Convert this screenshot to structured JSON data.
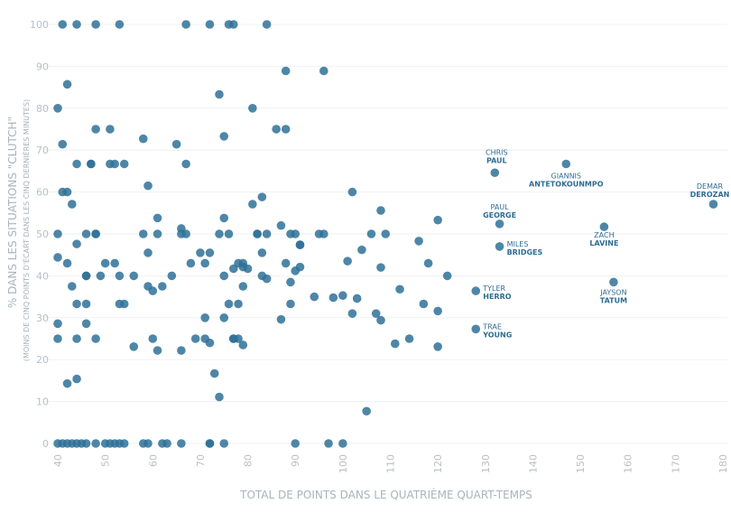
{
  "chart_data": {
    "type": "scatter",
    "xlabel": "TOTAL DE POINTS DANS LE QUATRIÈME QUART-TEMPS",
    "ylabel": "% DANS LES SITUATIONS \"CLUTCH\"",
    "ylabel_sub": "(MOINS DE CINQ POINTS D'ÉCART DANS LES CINQ DERNIÈRES MINUTES)",
    "xlim": [
      40,
      180
    ],
    "ylim": [
      0,
      100
    ],
    "x_ticks": [
      "40",
      "50",
      "60",
      "70",
      "80",
      "90",
      "100",
      "110",
      "120",
      "130",
      "140",
      "150",
      "160",
      "170",
      "180"
    ],
    "y_ticks": [
      "0",
      "10",
      "20",
      "30",
      "40",
      "50",
      "60",
      "70",
      "80",
      "90",
      "100"
    ],
    "grid": true,
    "colors": {
      "point": "#2f7198",
      "label": "#2f6d92",
      "grid": "#eef0f2",
      "tick": "#b8c0c8"
    },
    "labeled_points": [
      {
        "x": 132,
        "y": 64.6,
        "first": "CHRIS",
        "last": "PAUL"
      },
      {
        "x": 147,
        "y": 66.7,
        "first": "GIANNIS",
        "last": "ANTETOKOUNMPO"
      },
      {
        "x": 178,
        "y": 57.1,
        "first": "DEMAR",
        "last": "DEROZAN"
      },
      {
        "x": 133,
        "y": 52.4,
        "first": "PAUL",
        "last": "GEORGE"
      },
      {
        "x": 155,
        "y": 51.7,
        "first": "ZACH",
        "last": "LAVINE"
      },
      {
        "x": 133,
        "y": 47.0,
        "first": "MILES",
        "last": "BRIDGES"
      },
      {
        "x": 157,
        "y": 38.5,
        "first": "JAYSON",
        "last": "TATUM"
      },
      {
        "x": 128,
        "y": 36.4,
        "first": "TYLER",
        "last": "HERRO"
      },
      {
        "x": 128,
        "y": 27.3,
        "first": "TRAE",
        "last": "YOUNG"
      }
    ],
    "points": [
      [
        41,
        100
      ],
      [
        44,
        100
      ],
      [
        48,
        100
      ],
      [
        53,
        100
      ],
      [
        67,
        100
      ],
      [
        72,
        100
      ],
      [
        76,
        100
      ],
      [
        77,
        100
      ],
      [
        84,
        100
      ],
      [
        88,
        88.9
      ],
      [
        96,
        88.9
      ],
      [
        42,
        85.7
      ],
      [
        74,
        83.3
      ],
      [
        40,
        80
      ],
      [
        81,
        80
      ],
      [
        48,
        75
      ],
      [
        51,
        75
      ],
      [
        86,
        75
      ],
      [
        88,
        75
      ],
      [
        75,
        73.3
      ],
      [
        58,
        72.7
      ],
      [
        41,
        71.4
      ],
      [
        65,
        71.4
      ],
      [
        44,
        66.7
      ],
      [
        47,
        66.7
      ],
      [
        47,
        66.7
      ],
      [
        51,
        66.7
      ],
      [
        52,
        66.7
      ],
      [
        54,
        66.7
      ],
      [
        67,
        66.7
      ],
      [
        59,
        61.5
      ],
      [
        41,
        60
      ],
      [
        42,
        60
      ],
      [
        102,
        60
      ],
      [
        83,
        58.8
      ],
      [
        43,
        57.1
      ],
      [
        81,
        57.1
      ],
      [
        108,
        55.6
      ],
      [
        61,
        53.8
      ],
      [
        75,
        53.8
      ],
      [
        120,
        53.3
      ],
      [
        87,
        52
      ],
      [
        66,
        51.3
      ],
      [
        40,
        50
      ],
      [
        46,
        50
      ],
      [
        48,
        50
      ],
      [
        48,
        50
      ],
      [
        58,
        50
      ],
      [
        61,
        50
      ],
      [
        66,
        50
      ],
      [
        67,
        50
      ],
      [
        74,
        50
      ],
      [
        76,
        50
      ],
      [
        82,
        50
      ],
      [
        82,
        50
      ],
      [
        84,
        50
      ],
      [
        89,
        50
      ],
      [
        90,
        50
      ],
      [
        95,
        50
      ],
      [
        96,
        50
      ],
      [
        106,
        50
      ],
      [
        109,
        50
      ],
      [
        116,
        48.3
      ],
      [
        44,
        47.6
      ],
      [
        91,
        47.4
      ],
      [
        91,
        47.4
      ],
      [
        104,
        46.2
      ],
      [
        59,
        45.5
      ],
      [
        70,
        45.5
      ],
      [
        72,
        45.5
      ],
      [
        83,
        45.5
      ],
      [
        40,
        44.4
      ],
      [
        42,
        43
      ],
      [
        50,
        43
      ],
      [
        52,
        43
      ],
      [
        68,
        43
      ],
      [
        71,
        43
      ],
      [
        78,
        43
      ],
      [
        79,
        43
      ],
      [
        88,
        43
      ],
      [
        101,
        43.5
      ],
      [
        118,
        43
      ],
      [
        79,
        42.1
      ],
      [
        77,
        41.7
      ],
      [
        80,
        41.7
      ],
      [
        90,
        41.2
      ],
      [
        91,
        42.1
      ],
      [
        108,
        42
      ],
      [
        46,
        40
      ],
      [
        46,
        40
      ],
      [
        49,
        40
      ],
      [
        53,
        40
      ],
      [
        56,
        40
      ],
      [
        64,
        40
      ],
      [
        75,
        40
      ],
      [
        83,
        40
      ],
      [
        122,
        40
      ],
      [
        84,
        39.3
      ],
      [
        89,
        38.5
      ],
      [
        43,
        37.5
      ],
      [
        59,
        37.5
      ],
      [
        62,
        37.5
      ],
      [
        79,
        37.5
      ],
      [
        112,
        36.8
      ],
      [
        60,
        36.4
      ],
      [
        94,
        35
      ],
      [
        98,
        34.8
      ],
      [
        100,
        35.3
      ],
      [
        103,
        34.6
      ],
      [
        44,
        33.3
      ],
      [
        46,
        33.3
      ],
      [
        53,
        33.3
      ],
      [
        54,
        33.3
      ],
      [
        76,
        33.3
      ],
      [
        78,
        33.3
      ],
      [
        89,
        33.3
      ],
      [
        117,
        33.3
      ],
      [
        102,
        31
      ],
      [
        107,
        31
      ],
      [
        120,
        31.6
      ],
      [
        71,
        30
      ],
      [
        75,
        30
      ],
      [
        87,
        29.6
      ],
      [
        108,
        29.4
      ],
      [
        40,
        28.6
      ],
      [
        46,
        28.6
      ],
      [
        40,
        25
      ],
      [
        44,
        25
      ],
      [
        48,
        25
      ],
      [
        60,
        25
      ],
      [
        69,
        25
      ],
      [
        71,
        25
      ],
      [
        77,
        25
      ],
      [
        77,
        25
      ],
      [
        78,
        25
      ],
      [
        114,
        25
      ],
      [
        72,
        24
      ],
      [
        79,
        23.5
      ],
      [
        111,
        23.8
      ],
      [
        56,
        23.1
      ],
      [
        61,
        22.2
      ],
      [
        66,
        22.2
      ],
      [
        120,
        23.1
      ],
      [
        73,
        16.7
      ],
      [
        44,
        15.4
      ],
      [
        42,
        14.3
      ],
      [
        74,
        11.1
      ],
      [
        105,
        7.7
      ],
      [
        40,
        0
      ],
      [
        41,
        0
      ],
      [
        42,
        0
      ],
      [
        43,
        0
      ],
      [
        44,
        0
      ],
      [
        45,
        0
      ],
      [
        46,
        0
      ],
      [
        48,
        0
      ],
      [
        50,
        0
      ],
      [
        51,
        0
      ],
      [
        52,
        0
      ],
      [
        53,
        0
      ],
      [
        54,
        0
      ],
      [
        58,
        0
      ],
      [
        59,
        0
      ],
      [
        62,
        0
      ],
      [
        63,
        0
      ],
      [
        66,
        0
      ],
      [
        72,
        0
      ],
      [
        72,
        0
      ],
      [
        75,
        0
      ],
      [
        90,
        0
      ],
      [
        97,
        0
      ],
      [
        100,
        0
      ]
    ]
  }
}
